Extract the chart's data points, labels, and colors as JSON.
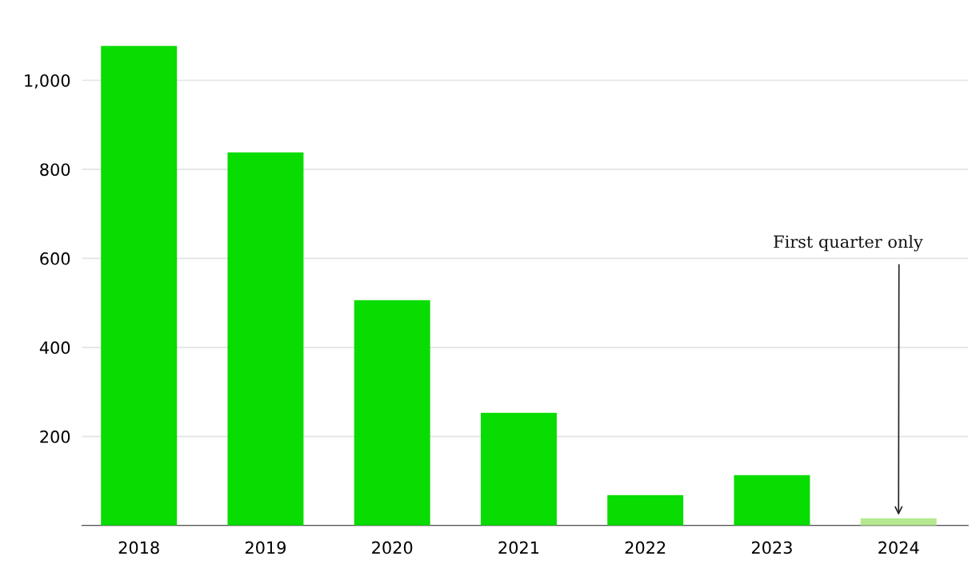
{
  "chart_data": {
    "type": "bar",
    "categories": [
      "2018",
      "2019",
      "2020",
      "2021",
      "2022",
      "2023",
      "2024"
    ],
    "values": [
      1077,
      838,
      506,
      253,
      68,
      113,
      16
    ],
    "colors": [
      "#08dc00",
      "#08dc00",
      "#08dc00",
      "#08dc00",
      "#08dc00",
      "#08dc00",
      "#b6e98f"
    ],
    "ylim": [
      0,
      1080
    ],
    "yticks": [
      {
        "value": 0,
        "label": null
      },
      200,
      400,
      600,
      800,
      {
        "value": 1000,
        "label": "1,000"
      }
    ],
    "grid": "y",
    "legend": false,
    "annotations": [
      {
        "text": "First quarter only",
        "x": "2024",
        "y": 16
      }
    ]
  }
}
